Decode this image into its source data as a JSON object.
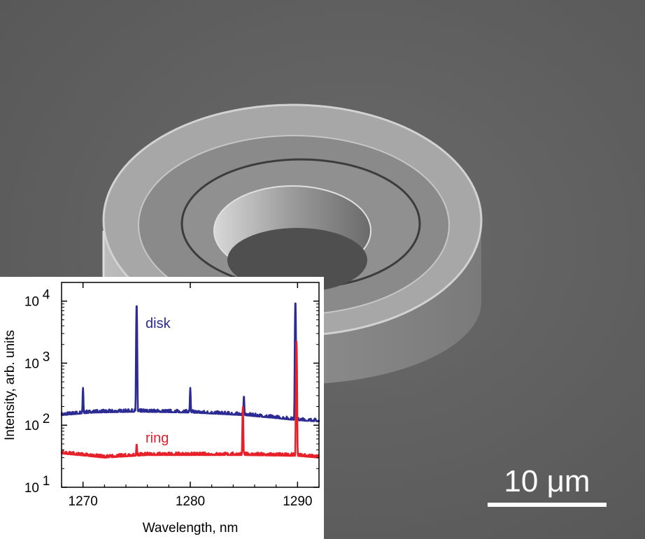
{
  "image": {
    "description_icon": "sem-microdisk-icon",
    "background_color": "#5d5d5d"
  },
  "scale_bar": {
    "label": "10 μm",
    "length_um": 10,
    "color": "#ffffff"
  },
  "chart_data": {
    "type": "line",
    "xlabel": "Wavelength, nm",
    "ylabel": "Intensity, arb. units",
    "xlim": [
      1268,
      1292
    ],
    "ylim": [
      10,
      20000
    ],
    "y_scale": "log",
    "x_ticks": [
      1270,
      1280,
      1290
    ],
    "x_tick_labels": [
      "1270",
      "1280",
      "1290"
    ],
    "y_ticks": [
      10,
      100,
      1000,
      10000
    ],
    "y_tick_labels": [
      {
        "base": "10",
        "exp": "1"
      },
      {
        "base": "10",
        "exp": "2"
      },
      {
        "base": "10",
        "exp": "3"
      },
      {
        "base": "10",
        "exp": "4"
      }
    ],
    "grid": false,
    "series": [
      {
        "name": "disk",
        "color": "#2b2b93",
        "baseline": [
          [
            1268,
            145
          ],
          [
            1271,
            160
          ],
          [
            1275,
            165
          ],
          [
            1280,
            160
          ],
          [
            1285,
            145
          ],
          [
            1288,
            130
          ],
          [
            1290,
            120
          ],
          [
            1292,
            115
          ]
        ],
        "peaks": [
          {
            "x": 1270.0,
            "y": 400
          },
          {
            "x": 1275.0,
            "y": 9000
          },
          {
            "x": 1280.0,
            "y": 400
          },
          {
            "x": 1285.0,
            "y": 300
          },
          {
            "x": 1289.8,
            "y": 10000
          }
        ]
      },
      {
        "name": "ring",
        "color": "#e8202a",
        "baseline": [
          [
            1268,
            35
          ],
          [
            1272,
            30
          ],
          [
            1276,
            33
          ],
          [
            1280,
            33
          ],
          [
            1285,
            33
          ],
          [
            1290,
            32
          ],
          [
            1292,
            30
          ]
        ],
        "peaks": [
          {
            "x": 1275.0,
            "y": 50
          },
          {
            "x": 1284.9,
            "y": 200
          },
          {
            "x": 1289.9,
            "y": 2300
          }
        ]
      }
    ]
  }
}
